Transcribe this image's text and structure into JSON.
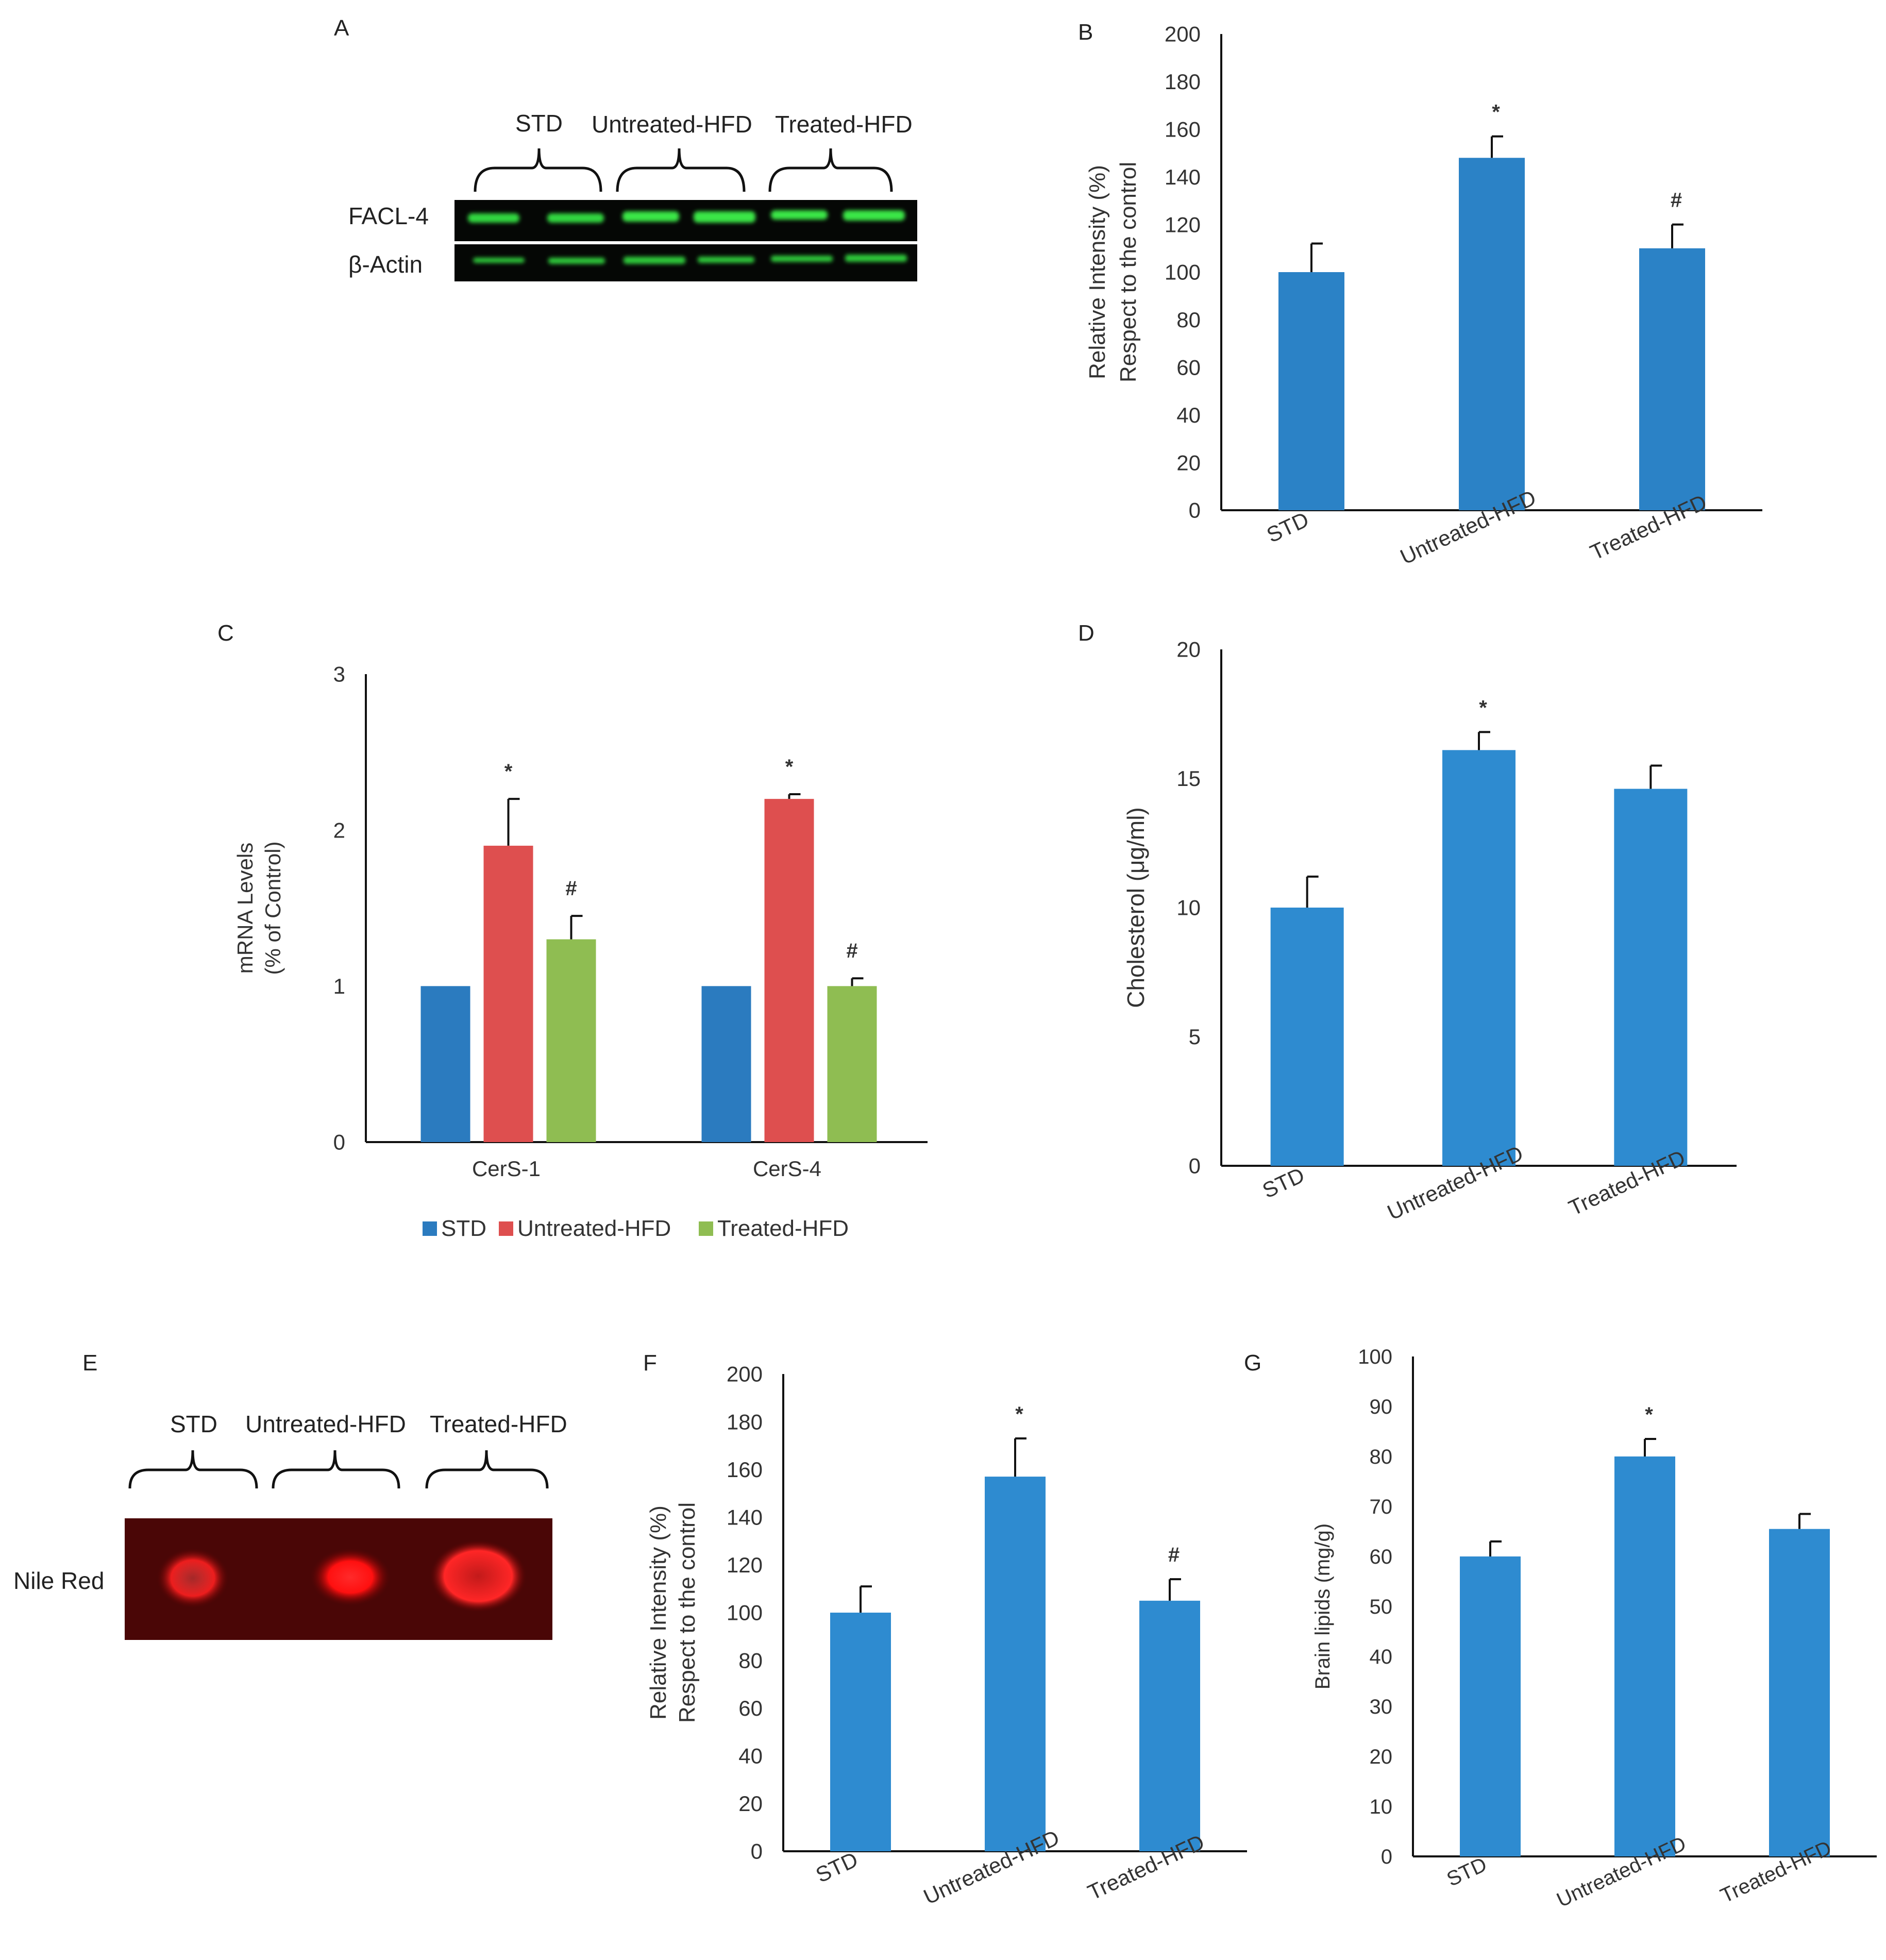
{
  "panels": {
    "A": {
      "letter": "A",
      "groups": [
        "STD",
        "Untreated-HFD",
        "Treated-HFD"
      ],
      "rows": [
        "FACL-4",
        "β-Actin"
      ]
    },
    "E": {
      "letter": "E",
      "groups": [
        "STD",
        "Untreated-HFD",
        "Treated-HFD"
      ],
      "row_label": "Nile Red"
    }
  },
  "chart_data": [
    {
      "id": "B",
      "panel": "B",
      "type": "bar",
      "categories": [
        "STD",
        "Untreated-HFD",
        "Treated-HFD"
      ],
      "values": [
        100,
        148,
        110
      ],
      "errors": [
        12,
        9,
        10
      ],
      "annotations": [
        "",
        "*",
        "#"
      ],
      "ylabel_lines": [
        "Relative  Intensity (%)",
        "Respect to the control"
      ],
      "ylim": [
        0,
        200
      ],
      "yticks": [
        0,
        20,
        40,
        60,
        80,
        100,
        120,
        140,
        160,
        180,
        200
      ],
      "color": "#2b82c6",
      "rotated_xticks": true
    },
    {
      "id": "C",
      "panel": "C",
      "type": "bar",
      "categories": [
        "CerS-1",
        "CerS-4"
      ],
      "series": [
        {
          "name": "STD",
          "values": [
            1,
            1
          ],
          "errors": [
            0,
            0
          ],
          "annotations": [
            "",
            ""
          ],
          "color": "#2b7bbf"
        },
        {
          "name": "Untreated-HFD",
          "values": [
            1.9,
            2.2
          ],
          "errors": [
            0.3,
            0.03
          ],
          "annotations": [
            "*",
            "*"
          ],
          "color": "#de4f4f"
        },
        {
          "name": "Treated-HFD",
          "values": [
            1.3,
            1.0
          ],
          "errors": [
            0.15,
            0.05
          ],
          "annotations": [
            "#",
            "#"
          ],
          "color": "#8fbd52"
        }
      ],
      "ylabel_lines": [
        "mRNA Levels",
        "(% of Control)"
      ],
      "ylim": [
        0,
        3
      ],
      "yticks": [
        0,
        1,
        2,
        3
      ],
      "legend": "bottom"
    },
    {
      "id": "D",
      "panel": "D",
      "type": "bar",
      "categories": [
        "STD",
        "Untreated-HFD",
        "Treated-HFD"
      ],
      "values": [
        10,
        16.1,
        14.6
      ],
      "errors": [
        1.2,
        0.7,
        0.9
      ],
      "annotations": [
        "",
        "*",
        ""
      ],
      "ylabel_lines": [
        "Cholesterol (μg/ml)"
      ],
      "ylim": [
        0,
        20
      ],
      "yticks": [
        0,
        5,
        10,
        15,
        20
      ],
      "color": "#2e8bd0",
      "rotated_xticks": true
    },
    {
      "id": "F",
      "panel": "F",
      "type": "bar",
      "categories": [
        "STD",
        "Untreated-HFD",
        "Treated-HFD"
      ],
      "values": [
        100,
        157,
        105
      ],
      "errors": [
        11,
        16,
        9
      ],
      "annotations": [
        "",
        "*",
        "#"
      ],
      "ylabel_lines": [
        "Relative  Intensity (%)",
        "Respect to the control"
      ],
      "ylim": [
        0,
        200
      ],
      "yticks": [
        0,
        20,
        40,
        60,
        80,
        100,
        120,
        140,
        160,
        180,
        200
      ],
      "color": "#2e8bd0",
      "rotated_xticks": true
    },
    {
      "id": "G",
      "panel": "G",
      "type": "bar",
      "categories": [
        "STD",
        "Untreated-HFD",
        "Treated-HFD"
      ],
      "values": [
        60,
        80,
        65.5
      ],
      "errors": [
        3,
        3.5,
        3
      ],
      "annotations": [
        "",
        "*",
        ""
      ],
      "ylabel_lines": [
        "Brain lipids (mg/g)"
      ],
      "ylim": [
        0,
        100
      ],
      "yticks": [
        0,
        10,
        20,
        30,
        40,
        50,
        60,
        70,
        80,
        90,
        100
      ],
      "color": "#2e8bd0",
      "rotated_xticks": true
    }
  ]
}
